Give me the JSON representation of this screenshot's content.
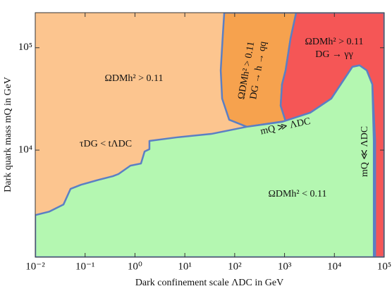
{
  "chart_data": {
    "type": "region",
    "x_label": "Dark confinement scale ΛDC in GeV",
    "y_label": "Dark quark mass mQ in GeV",
    "xscale": "log",
    "yscale": "log",
    "xlim": [
      0.01,
      100000
    ],
    "ylim": [
      900,
      220000
    ],
    "xticks": [
      {
        "value": 0.01,
        "label": "10⁻²"
      },
      {
        "value": 0.1,
        "label": "10⁻¹"
      },
      {
        "value": 1,
        "label": "10⁰"
      },
      {
        "value": 10,
        "label": "10¹"
      },
      {
        "value": 100,
        "label": "10²"
      },
      {
        "value": 1000,
        "label": "10³"
      },
      {
        "value": 10000,
        "label": "10⁴"
      },
      {
        "value": 100000,
        "label": "10⁵"
      }
    ],
    "yticks": [
      {
        "value": 10000,
        "label": "10⁴"
      },
      {
        "value": 100000,
        "label": "10⁵"
      }
    ],
    "background_color": "#fcc58f",
    "boundary_color": "#5b7fc4",
    "regions": [
      {
        "color": "#f6a24e",
        "x": [
          61.8,
          1710,
          1320,
          1050,
          890,
          836,
          1050,
          175,
          77.6,
          56,
          52.5,
          57.8
        ],
        "y": [
          220000,
          220000,
          123000,
          60100,
          43800,
          27200,
          19200,
          16900,
          19800,
          31900,
          60100,
          133000
        ]
      },
      {
        "color": "#f55656",
        "x": [
          1710,
          100000,
          100000,
          65800,
          65800,
          57600,
          44500,
          32000,
          23000,
          16600,
          8700,
          3280,
          1050,
          836,
          890,
          1050,
          1320
        ],
        "y": [
          220000,
          220000,
          900,
          900,
          12300,
          43800,
          60100,
          67300,
          65100,
          51300,
          31900,
          23200,
          19200,
          27200,
          43800,
          60100,
          123000
        ]
      },
      {
        "color": "#b4f7b1",
        "x": [
          0.01,
          0.0192,
          0.0368,
          0.051,
          0.083,
          0.187,
          0.36,
          0.467,
          0.81,
          1.32,
          1.56,
          1.95,
          1.95,
          6.7,
          34,
          175,
          890,
          3280,
          8700,
          16600,
          23000,
          32000,
          44500,
          57600,
          61700,
          61700,
          0.01
        ],
        "y": [
          2320,
          2510,
          2940,
          4180,
          4590,
          5130,
          5560,
          5840,
          7050,
          7400,
          9690,
          10200,
          12300,
          13300,
          14400,
          16900,
          18900,
          23200,
          31900,
          51300,
          65100,
          67300,
          60100,
          43800,
          12300,
          900,
          900
        ]
      }
    ],
    "annotations": [
      "ΩDMh² > 0.11",
      "τDG < tΛDC",
      "ΩDMh² > 0.11",
      "DG → h → qq",
      "ΩDMh² > 0.11",
      "DG → γγ",
      "mQ ≫ ΛDC",
      "mQ ≪ ΛDC",
      "ΩDMh² < 0.11"
    ]
  }
}
